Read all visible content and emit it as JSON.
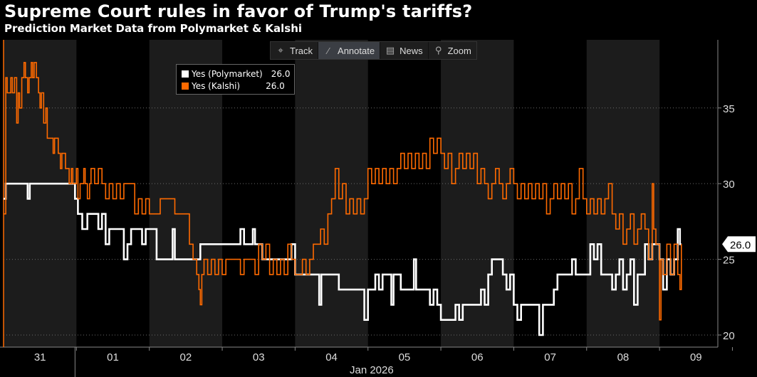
{
  "title": "Supreme Court rules in favor of Trump's tariffs?",
  "subtitle": "Prediction Market Data from Polymarket & Kalshi",
  "toolbar": [
    {
      "label": "Track",
      "icon": "crosshair-icon",
      "glyph": "⌖"
    },
    {
      "label": "Annotate",
      "icon": "pencil-icon",
      "glyph": "⁄"
    },
    {
      "label": "News",
      "icon": "news-icon",
      "glyph": "▤"
    },
    {
      "label": "Zoom",
      "icon": "magnifier-icon",
      "glyph": "⚲"
    }
  ],
  "legend": [
    {
      "name": "Yes (Polymarket)",
      "value": "26.0",
      "color": "#ffffff"
    },
    {
      "name": "Yes (Kalshi)",
      "value": "26.0",
      "color": "#ff6a00"
    }
  ],
  "current_value_label": "26.0",
  "chart_data": {
    "type": "line",
    "title": "Supreme Court rules in favor of Trump's tariffs?",
    "subtitle": "Prediction Market Data from Polymarket & Kalshi",
    "xlabel": "Jan 2026",
    "ylabel": "",
    "x_unit": "days since Dec 31, 2025 00:00",
    "xlim": [
      0,
      9.8
    ],
    "ylim": [
      19.2,
      39.5
    ],
    "yticks": [
      20,
      25,
      30,
      35
    ],
    "ytick_labels": [
      "20",
      "25",
      "30",
      "35"
    ],
    "xticks": [
      0.5,
      1.5,
      2.5,
      3.5,
      4.5,
      5.5,
      6.5,
      7.5,
      8.5,
      9.5
    ],
    "xtick_labels": [
      "31",
      "01",
      "02",
      "03",
      "04",
      "05",
      "06",
      "07",
      "08",
      "09"
    ],
    "shaded_days": [
      0,
      2,
      4,
      6,
      8
    ],
    "grid": true,
    "legend_position": "top-left",
    "series": [
      {
        "name": "Yes (Polymarket)",
        "color": "#ffffff",
        "points": [
          [
            0,
            29
          ],
          [
            0.03,
            30
          ],
          [
            0.3,
            30
          ],
          [
            0.33,
            29
          ],
          [
            0.36,
            30
          ],
          [
            0.95,
            30
          ],
          [
            0.98,
            29
          ],
          [
            1.02,
            28
          ],
          [
            1.08,
            27
          ],
          [
            1.15,
            28
          ],
          [
            1.25,
            28
          ],
          [
            1.3,
            27
          ],
          [
            1.35,
            28
          ],
          [
            1.4,
            26
          ],
          [
            1.45,
            27
          ],
          [
            1.6,
            27
          ],
          [
            1.65,
            25
          ],
          [
            1.7,
            26
          ],
          [
            1.75,
            27
          ],
          [
            1.85,
            27
          ],
          [
            1.9,
            26
          ],
          [
            1.95,
            27
          ],
          [
            2.1,
            25
          ],
          [
            2.3,
            25
          ],
          [
            2.32,
            27
          ],
          [
            2.35,
            25
          ],
          [
            2.65,
            25
          ],
          [
            2.7,
            26
          ],
          [
            3.2,
            26
          ],
          [
            3.25,
            27
          ],
          [
            3.3,
            26
          ],
          [
            3.4,
            26
          ],
          [
            3.42,
            27
          ],
          [
            3.45,
            26
          ],
          [
            3.55,
            25
          ],
          [
            3.9,
            25
          ],
          [
            3.95,
            26
          ],
          [
            4.0,
            24
          ],
          [
            4.3,
            24
          ],
          [
            4.33,
            22
          ],
          [
            4.36,
            24
          ],
          [
            4.5,
            24
          ],
          [
            4.6,
            23
          ],
          [
            4.9,
            23
          ],
          [
            4.95,
            21
          ],
          [
            5.0,
            23
          ],
          [
            5.1,
            24
          ],
          [
            5.15,
            23
          ],
          [
            5.2,
            24
          ],
          [
            5.3,
            24
          ],
          [
            5.32,
            22
          ],
          [
            5.35,
            24
          ],
          [
            5.4,
            24
          ],
          [
            5.45,
            23
          ],
          [
            5.6,
            23
          ],
          [
            5.63,
            25
          ],
          [
            5.66,
            23
          ],
          [
            5.8,
            23
          ],
          [
            5.85,
            22
          ],
          [
            5.9,
            23
          ],
          [
            5.95,
            22
          ],
          [
            6.0,
            21
          ],
          [
            6.15,
            21
          ],
          [
            6.2,
            22
          ],
          [
            6.25,
            21
          ],
          [
            6.3,
            22
          ],
          [
            6.5,
            22
          ],
          [
            6.55,
            23
          ],
          [
            6.6,
            22
          ],
          [
            6.65,
            24
          ],
          [
            6.7,
            25
          ],
          [
            6.8,
            25
          ],
          [
            6.85,
            24
          ],
          [
            6.9,
            23
          ],
          [
            6.95,
            24
          ],
          [
            7.0,
            22
          ],
          [
            7.05,
            21
          ],
          [
            7.1,
            22
          ],
          [
            7.3,
            22
          ],
          [
            7.35,
            20
          ],
          [
            7.4,
            22
          ],
          [
            7.5,
            22
          ],
          [
            7.55,
            23
          ],
          [
            7.6,
            24
          ],
          [
            7.7,
            24
          ],
          [
            7.8,
            25
          ],
          [
            7.85,
            24
          ],
          [
            7.95,
            24
          ],
          [
            8.05,
            26
          ],
          [
            8.1,
            25
          ],
          [
            8.15,
            26
          ],
          [
            8.2,
            24
          ],
          [
            8.3,
            24
          ],
          [
            8.35,
            23
          ],
          [
            8.4,
            24
          ],
          [
            8.45,
            25
          ],
          [
            8.5,
            23
          ],
          [
            8.55,
            24
          ],
          [
            8.6,
            25
          ],
          [
            8.65,
            22
          ],
          [
            8.7,
            24
          ],
          [
            8.8,
            26
          ],
          [
            8.85,
            25
          ],
          [
            8.9,
            26
          ],
          [
            9.0,
            25
          ],
          [
            9.05,
            23
          ],
          [
            9.1,
            25
          ],
          [
            9.15,
            24
          ],
          [
            9.2,
            25
          ],
          [
            9.25,
            27
          ],
          [
            9.28,
            26
          ],
          [
            9.3,
            26
          ]
        ]
      },
      {
        "name": "Yes (Kalshi)",
        "color": "#ff6a00",
        "points": [
          [
            0,
            28
          ],
          [
            0.03,
            37
          ],
          [
            0.05,
            36
          ],
          [
            0.1,
            37
          ],
          [
            0.12,
            36
          ],
          [
            0.15,
            37
          ],
          [
            0.18,
            34
          ],
          [
            0.2,
            36
          ],
          [
            0.22,
            35
          ],
          [
            0.25,
            37
          ],
          [
            0.28,
            38
          ],
          [
            0.3,
            37
          ],
          [
            0.33,
            36
          ],
          [
            0.35,
            37
          ],
          [
            0.38,
            38
          ],
          [
            0.4,
            37
          ],
          [
            0.42,
            38
          ],
          [
            0.45,
            37
          ],
          [
            0.48,
            36
          ],
          [
            0.5,
            35
          ],
          [
            0.52,
            36
          ],
          [
            0.55,
            34
          ],
          [
            0.58,
            35
          ],
          [
            0.6,
            33
          ],
          [
            0.65,
            33
          ],
          [
            0.68,
            32
          ],
          [
            0.7,
            33
          ],
          [
            0.75,
            32
          ],
          [
            0.78,
            31
          ],
          [
            0.8,
            32
          ],
          [
            0.85,
            31
          ],
          [
            0.9,
            30
          ],
          [
            0.93,
            31
          ],
          [
            0.95,
            30
          ],
          [
            1.0,
            31
          ],
          [
            1.02,
            29
          ],
          [
            1.05,
            30
          ],
          [
            1.1,
            31
          ],
          [
            1.12,
            30
          ],
          [
            1.15,
            29
          ],
          [
            1.18,
            30
          ],
          [
            1.2,
            31
          ],
          [
            1.25,
            30
          ],
          [
            1.3,
            31
          ],
          [
            1.35,
            30
          ],
          [
            1.4,
            29
          ],
          [
            1.45,
            30
          ],
          [
            1.5,
            29
          ],
          [
            1.55,
            30
          ],
          [
            1.6,
            29
          ],
          [
            1.65,
            30
          ],
          [
            1.75,
            30
          ],
          [
            1.8,
            28
          ],
          [
            1.85,
            29
          ],
          [
            1.9,
            28
          ],
          [
            1.95,
            29
          ],
          [
            2.0,
            28
          ],
          [
            2.1,
            28
          ],
          [
            2.15,
            29
          ],
          [
            2.3,
            29
          ],
          [
            2.35,
            28
          ],
          [
            2.5,
            28
          ],
          [
            2.55,
            26
          ],
          [
            2.6,
            25
          ],
          [
            2.65,
            24
          ],
          [
            2.68,
            23
          ],
          [
            2.7,
            22
          ],
          [
            2.72,
            24
          ],
          [
            2.75,
            25
          ],
          [
            2.8,
            24
          ],
          [
            2.85,
            25
          ],
          [
            2.9,
            24
          ],
          [
            2.95,
            25
          ],
          [
            3.0,
            24
          ],
          [
            3.05,
            25
          ],
          [
            3.2,
            25
          ],
          [
            3.25,
            24
          ],
          [
            3.3,
            25
          ],
          [
            3.4,
            25
          ],
          [
            3.45,
            24
          ],
          [
            3.5,
            26
          ],
          [
            3.55,
            25
          ],
          [
            3.6,
            26
          ],
          [
            3.65,
            24
          ],
          [
            3.7,
            25
          ],
          [
            3.75,
            24
          ],
          [
            3.8,
            25
          ],
          [
            3.85,
            24
          ],
          [
            3.9,
            26
          ],
          [
            3.95,
            25
          ],
          [
            4.0,
            24
          ],
          [
            4.05,
            24
          ],
          [
            4.1,
            25
          ],
          [
            4.15,
            24
          ],
          [
            4.2,
            25
          ],
          [
            4.25,
            26
          ],
          [
            4.3,
            26
          ],
          [
            4.35,
            27
          ],
          [
            4.4,
            26
          ],
          [
            4.45,
            28
          ],
          [
            4.5,
            29
          ],
          [
            4.55,
            31
          ],
          [
            4.6,
            29
          ],
          [
            4.65,
            30
          ],
          [
            4.7,
            28
          ],
          [
            4.75,
            29
          ],
          [
            4.8,
            28
          ],
          [
            4.85,
            29
          ],
          [
            4.9,
            28
          ],
          [
            4.95,
            29
          ],
          [
            5.0,
            31
          ],
          [
            5.05,
            30
          ],
          [
            5.1,
            31
          ],
          [
            5.15,
            30
          ],
          [
            5.2,
            31
          ],
          [
            5.25,
            30
          ],
          [
            5.3,
            31
          ],
          [
            5.35,
            30
          ],
          [
            5.4,
            31
          ],
          [
            5.45,
            32
          ],
          [
            5.5,
            31
          ],
          [
            5.55,
            32
          ],
          [
            5.6,
            31
          ],
          [
            5.65,
            32
          ],
          [
            5.7,
            31
          ],
          [
            5.75,
            32
          ],
          [
            5.8,
            31
          ],
          [
            5.85,
            33
          ],
          [
            5.9,
            32
          ],
          [
            5.95,
            33
          ],
          [
            6.0,
            32
          ],
          [
            6.05,
            31
          ],
          [
            6.1,
            32
          ],
          [
            6.15,
            30
          ],
          [
            6.2,
            31
          ],
          [
            6.25,
            32
          ],
          [
            6.3,
            31
          ],
          [
            6.35,
            32
          ],
          [
            6.4,
            31
          ],
          [
            6.45,
            32
          ],
          [
            6.5,
            30
          ],
          [
            6.55,
            31
          ],
          [
            6.6,
            30
          ],
          [
            6.65,
            29
          ],
          [
            6.7,
            30
          ],
          [
            6.75,
            31
          ],
          [
            6.8,
            30
          ],
          [
            6.85,
            29
          ],
          [
            6.9,
            30
          ],
          [
            6.95,
            31
          ],
          [
            7.0,
            30
          ],
          [
            7.05,
            29
          ],
          [
            7.1,
            30
          ],
          [
            7.15,
            29
          ],
          [
            7.2,
            30
          ],
          [
            7.25,
            29
          ],
          [
            7.3,
            30
          ],
          [
            7.35,
            29
          ],
          [
            7.4,
            30
          ],
          [
            7.45,
            28
          ],
          [
            7.5,
            29
          ],
          [
            7.55,
            30
          ],
          [
            7.6,
            29
          ],
          [
            7.65,
            30
          ],
          [
            7.7,
            29
          ],
          [
            7.75,
            30
          ],
          [
            7.8,
            28
          ],
          [
            7.85,
            29
          ],
          [
            7.9,
            31
          ],
          [
            7.95,
            29
          ],
          [
            8.0,
            28
          ],
          [
            8.05,
            29
          ],
          [
            8.1,
            28
          ],
          [
            8.15,
            29
          ],
          [
            8.2,
            28
          ],
          [
            8.25,
            29
          ],
          [
            8.3,
            30
          ],
          [
            8.35,
            28
          ],
          [
            8.4,
            27
          ],
          [
            8.45,
            28
          ],
          [
            8.5,
            26
          ],
          [
            8.55,
            27
          ],
          [
            8.6,
            28
          ],
          [
            8.65,
            26
          ],
          [
            8.7,
            27
          ],
          [
            8.75,
            28
          ],
          [
            8.8,
            27
          ],
          [
            8.85,
            25
          ],
          [
            8.9,
            30
          ],
          [
            8.92,
            27
          ],
          [
            8.95,
            26
          ],
          [
            9.0,
            21
          ],
          [
            9.02,
            25
          ],
          [
            9.05,
            24
          ],
          [
            9.1,
            26
          ],
          [
            9.15,
            24
          ],
          [
            9.2,
            26
          ],
          [
            9.25,
            24
          ],
          [
            9.28,
            23
          ],
          [
            9.3,
            26
          ]
        ]
      }
    ]
  }
}
